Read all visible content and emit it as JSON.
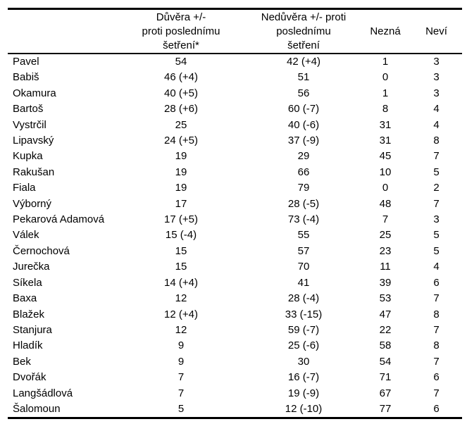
{
  "document": {
    "type": "survey-results-table",
    "language": "cs"
  },
  "colors": {
    "background": "#ffffff",
    "text": "#000000",
    "rule": "#000000"
  },
  "table": {
    "header": {
      "col_name": "",
      "col_duvera_lines": [
        "Důvěra +/-",
        "proti poslednímu",
        "šetření*"
      ],
      "col_neduvera_lines": [
        "Nedůvěra +/- proti",
        "poslednímu",
        "šetření"
      ],
      "col_nezna": "Nezná",
      "col_nevi": "Neví"
    },
    "rows": [
      {
        "name": "Pavel",
        "duvera": "54",
        "neduvera": "42 (+4)",
        "nezna": "1",
        "nevi": "3"
      },
      {
        "name": "Babiš",
        "duvera": "46 (+4)",
        "neduvera": "51",
        "nezna": "0",
        "nevi": "3"
      },
      {
        "name": "Okamura",
        "duvera": "40 (+5)",
        "neduvera": "56",
        "nezna": "1",
        "nevi": "3"
      },
      {
        "name": "Bartoš",
        "duvera": "28 (+6)",
        "neduvera": "60 (-7)",
        "nezna": "8",
        "nevi": "4"
      },
      {
        "name": "Vystrčil",
        "duvera": "25",
        "neduvera": "40 (-6)",
        "nezna": "31",
        "nevi": "4"
      },
      {
        "name": "Lipavský",
        "duvera": "24 (+5)",
        "neduvera": "37 (-9)",
        "nezna": "31",
        "nevi": "8"
      },
      {
        "name": "Kupka",
        "duvera": "19",
        "neduvera": "29",
        "nezna": "45",
        "nevi": "7"
      },
      {
        "name": "Rakušan",
        "duvera": "19",
        "neduvera": "66",
        "nezna": "10",
        "nevi": "5"
      },
      {
        "name": "Fiala",
        "duvera": "19",
        "neduvera": "79",
        "nezna": "0",
        "nevi": "2"
      },
      {
        "name": "Výborný",
        "duvera": "17",
        "neduvera": "28 (-5)",
        "nezna": "48",
        "nevi": "7"
      },
      {
        "name": "Pekarová Adamová",
        "duvera": "17 (+5)",
        "neduvera": "73 (-4)",
        "nezna": "7",
        "nevi": "3"
      },
      {
        "name": "Válek",
        "duvera": "15 (-4)",
        "neduvera": "55",
        "nezna": "25",
        "nevi": "5"
      },
      {
        "name": "Černochová",
        "duvera": "15",
        "neduvera": "57",
        "nezna": "23",
        "nevi": "5"
      },
      {
        "name": "Jurečka",
        "duvera": "15",
        "neduvera": "70",
        "nezna": "11",
        "nevi": "4"
      },
      {
        "name": "Síkela",
        "duvera": "14 (+4)",
        "neduvera": "41",
        "nezna": "39",
        "nevi": "6"
      },
      {
        "name": "Baxa",
        "duvera": "12",
        "neduvera": "28 (-4)",
        "nezna": "53",
        "nevi": "7"
      },
      {
        "name": "Blažek",
        "duvera": "12 (+4)",
        "neduvera": "33 (-15)",
        "nezna": "47",
        "nevi": "8"
      },
      {
        "name": "Stanjura",
        "duvera": "12",
        "neduvera": "59 (-7)",
        "nezna": "22",
        "nevi": "7"
      },
      {
        "name": "Hladík",
        "duvera": "9",
        "neduvera": "25 (-6)",
        "nezna": "58",
        "nevi": "8"
      },
      {
        "name": "Bek",
        "duvera": "9",
        "neduvera": "30",
        "nezna": "54",
        "nevi": "7"
      },
      {
        "name": "Dvořák",
        "duvera": "7",
        "neduvera": "16 (-7)",
        "nezna": "71",
        "nevi": "6"
      },
      {
        "name": "Langšádlová",
        "duvera": "7",
        "neduvera": "19 (-9)",
        "nezna": "67",
        "nevi": "7"
      },
      {
        "name": "Šalomoun",
        "duvera": "5",
        "neduvera": "12 (-10)",
        "nezna": "77",
        "nevi": "6"
      }
    ]
  },
  "chart_data": {
    "type": "table",
    "title": "",
    "columns": [
      "",
      "Důvěra +/- proti poslednímu šetření*",
      "Nedůvěra +/- proti poslednímu šetření",
      "Nezná",
      "Neví"
    ],
    "categories": [
      "Pavel",
      "Babiš",
      "Okamura",
      "Bartoš",
      "Vystrčil",
      "Lipavský",
      "Kupka",
      "Rakušan",
      "Fiala",
      "Výborný",
      "Pekarová Adamová",
      "Válek",
      "Černochová",
      "Jurečka",
      "Síkela",
      "Baxa",
      "Blažek",
      "Stanjura",
      "Hladík",
      "Bek",
      "Dvořák",
      "Langšádlová",
      "Šalomoun"
    ],
    "series": [
      {
        "name": "Důvěra",
        "values": [
          54,
          46,
          40,
          28,
          25,
          24,
          19,
          19,
          19,
          17,
          17,
          15,
          15,
          15,
          14,
          12,
          12,
          12,
          9,
          9,
          7,
          7,
          5
        ]
      },
      {
        "name": "Důvěra změna",
        "values": [
          null,
          4,
          5,
          6,
          null,
          5,
          null,
          null,
          null,
          null,
          5,
          -4,
          null,
          null,
          4,
          null,
          4,
          null,
          null,
          null,
          null,
          null,
          null
        ]
      },
      {
        "name": "Nedůvěra",
        "values": [
          42,
          51,
          56,
          60,
          40,
          37,
          29,
          66,
          79,
          28,
          73,
          55,
          57,
          70,
          41,
          28,
          33,
          59,
          25,
          30,
          16,
          19,
          12
        ]
      },
      {
        "name": "Nedůvěra změna",
        "values": [
          4,
          null,
          null,
          -7,
          -6,
          -9,
          null,
          null,
          null,
          -5,
          -4,
          null,
          null,
          null,
          null,
          -4,
          -15,
          -7,
          -6,
          null,
          -7,
          -9,
          -10
        ]
      },
      {
        "name": "Nezná",
        "values": [
          1,
          0,
          1,
          8,
          31,
          31,
          45,
          10,
          0,
          48,
          7,
          25,
          23,
          11,
          39,
          53,
          47,
          22,
          58,
          54,
          71,
          67,
          77
        ]
      },
      {
        "name": "Neví",
        "values": [
          3,
          3,
          3,
          4,
          4,
          8,
          7,
          5,
          2,
          7,
          3,
          5,
          5,
          4,
          6,
          7,
          8,
          7,
          8,
          7,
          6,
          7,
          6
        ]
      }
    ]
  }
}
